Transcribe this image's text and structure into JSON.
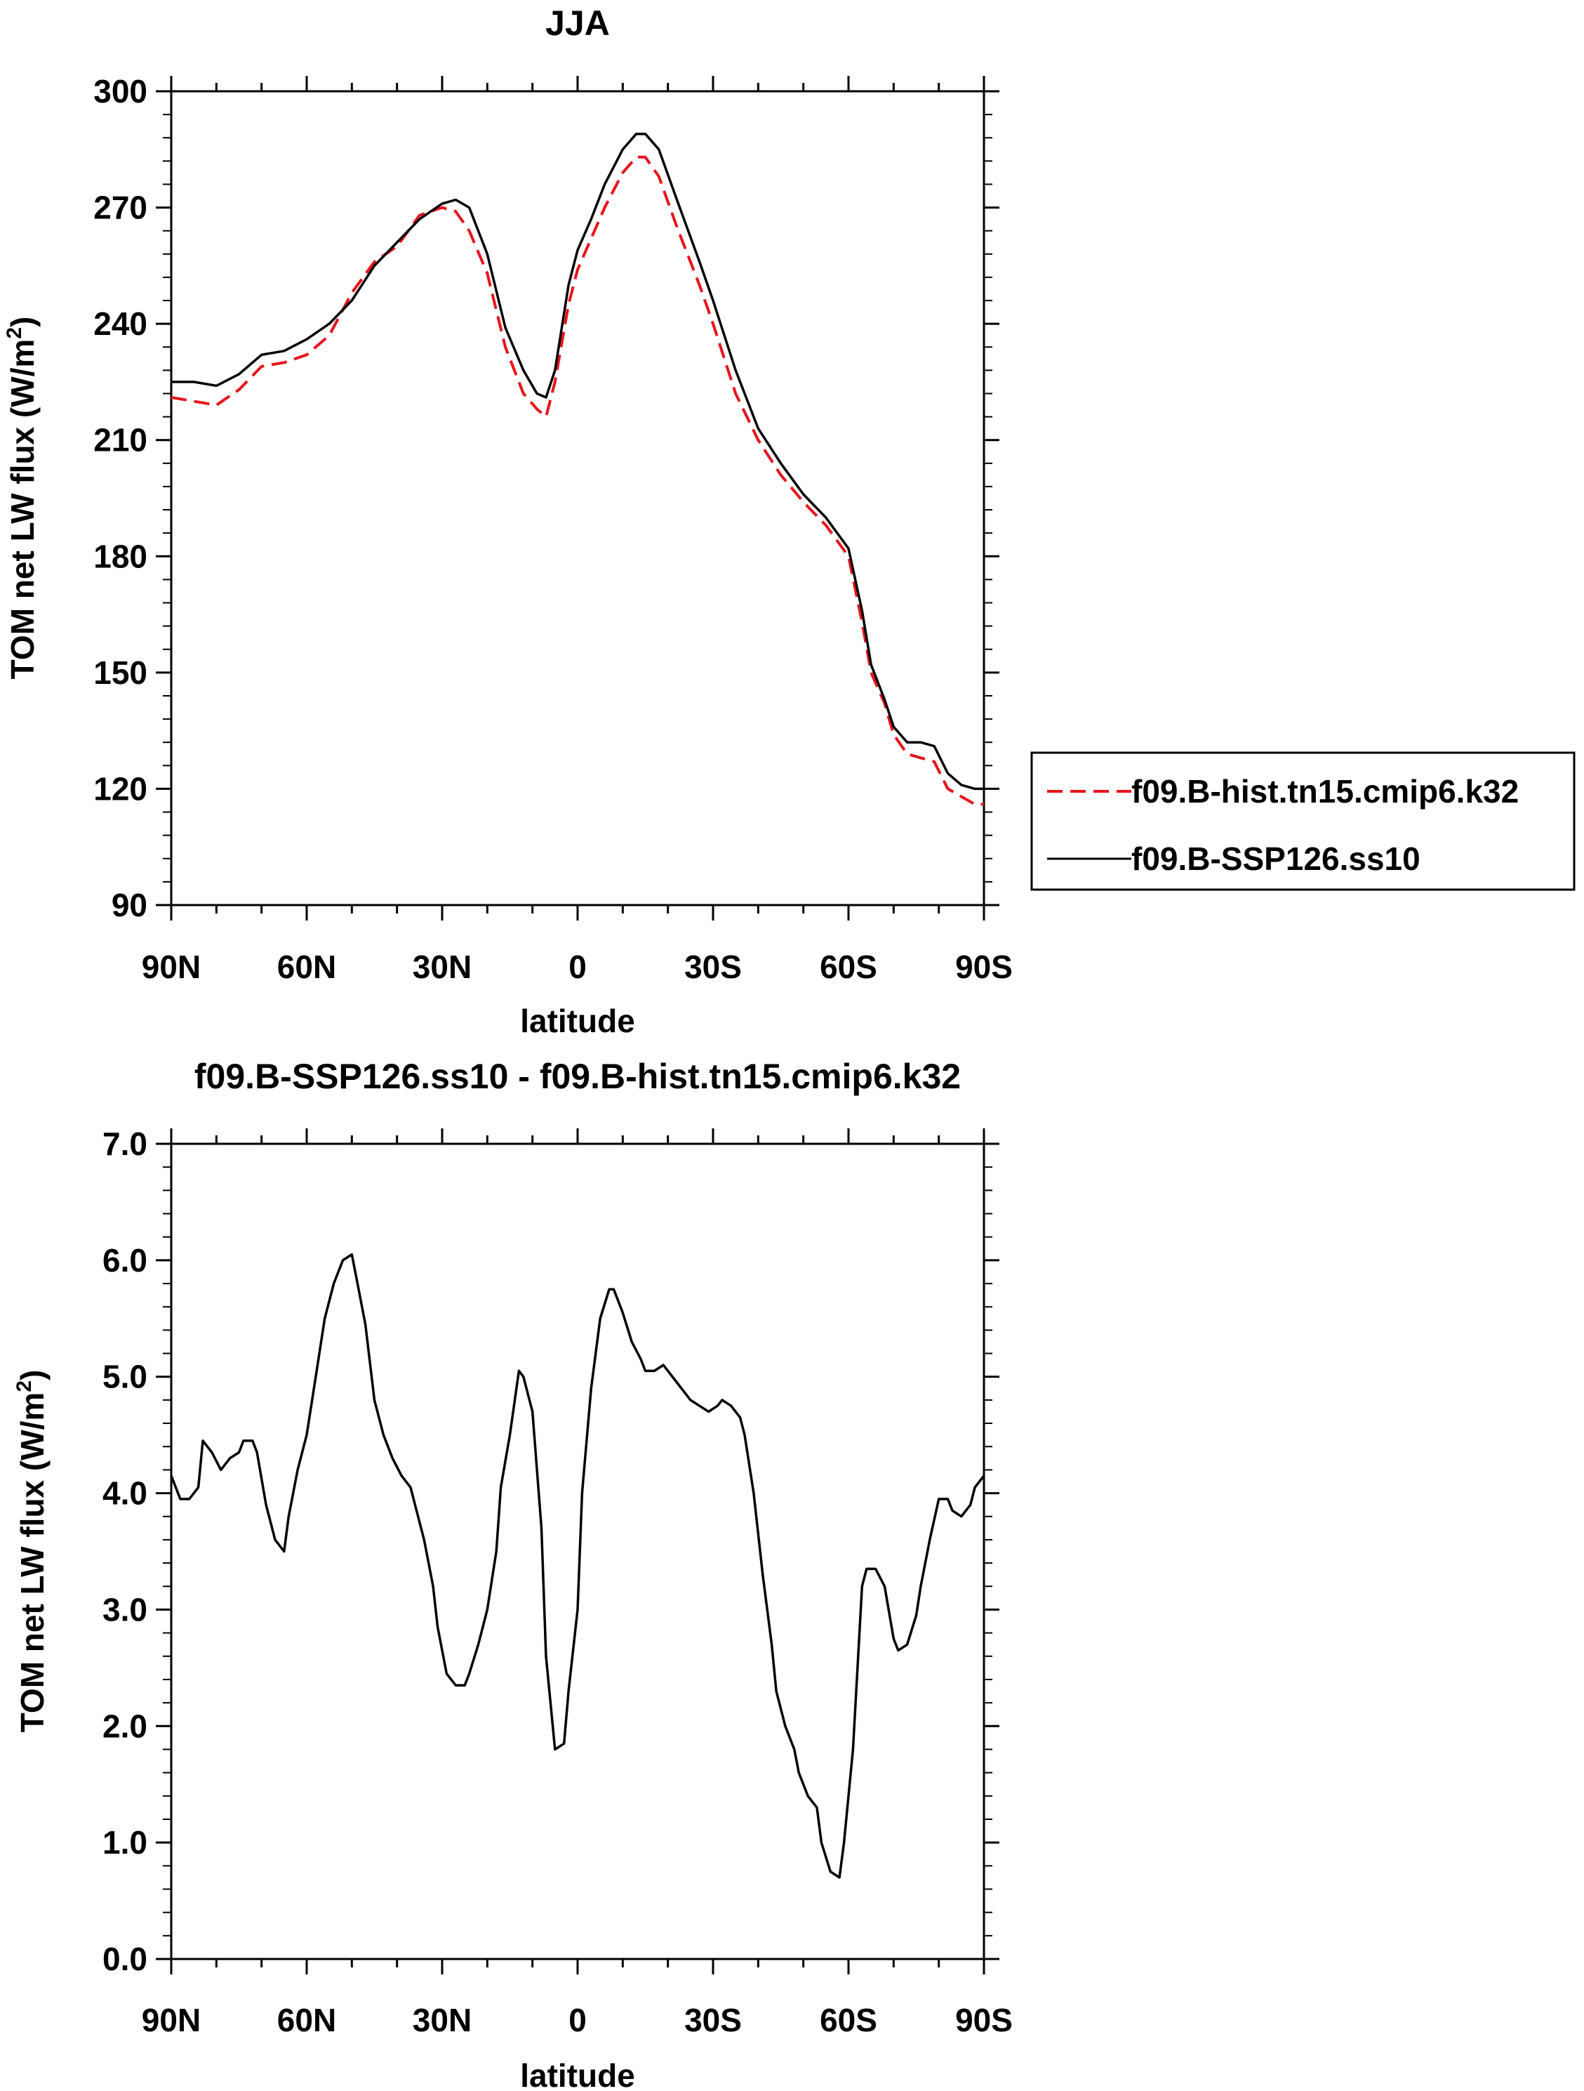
{
  "chart_data": [
    {
      "type": "line",
      "title": "JJA",
      "xlabel": "latitude",
      "ylabel": "TOM net LW flux (W/m",
      "ylabel_sup": "2",
      "ylabel_end": ")",
      "x_tick_labels": [
        "90N",
        "60N",
        "30N",
        "0",
        "30S",
        "60S",
        "90S"
      ],
      "x_tick_values": [
        90,
        60,
        30,
        0,
        -30,
        -60,
        -90
      ],
      "xlim": [
        90,
        -90
      ],
      "ylim": [
        90,
        300
      ],
      "y_ticks": [
        90,
        120,
        150,
        180,
        210,
        240,
        270,
        300
      ],
      "y_tick_labels": [
        "90",
        "120",
        "150",
        "180",
        "210",
        "240",
        "270",
        "300"
      ],
      "legend": {
        "placement": "right",
        "entries": [
          {
            "label": "f09.B-hist.tn15.cmip6.k32",
            "color": "#e8141c",
            "dash": "dashed"
          },
          {
            "label": "f09.B-SSP126.ss10",
            "color": "#000000",
            "dash": "solid"
          }
        ]
      },
      "series": [
        {
          "name": "f09.B-hist.tn15.cmip6.k32",
          "color": "#e8141c",
          "dash": "dashed",
          "x": [
            90,
            85,
            80,
            75,
            70,
            65,
            60,
            55,
            50,
            45,
            40,
            35,
            30,
            27,
            24,
            20,
            16,
            12,
            9,
            7,
            5,
            2,
            0,
            -3,
            -6,
            -10,
            -13,
            -15,
            -18,
            -22,
            -27,
            -30,
            -35,
            -40,
            -45,
            -50,
            -55,
            -60,
            -63,
            -65,
            -68,
            -70,
            -73,
            -76,
            -79,
            -82,
            -85,
            -88,
            -90
          ],
          "y": [
            221,
            220,
            219,
            223,
            229,
            230,
            232,
            237,
            248,
            256,
            260,
            268,
            270,
            269,
            264,
            253,
            234,
            222,
            218,
            216,
            225,
            245,
            254,
            262,
            270,
            279,
            283,
            283,
            278,
            265,
            250,
            240,
            222,
            210,
            201,
            194,
            188,
            180,
            163,
            150,
            142,
            134,
            129,
            128,
            127,
            120,
            118,
            116,
            116
          ]
        },
        {
          "name": "f09.B-SSP126.ss10",
          "color": "#000000",
          "dash": "solid",
          "x": [
            90,
            85,
            80,
            75,
            70,
            65,
            60,
            55,
            50,
            45,
            40,
            35,
            30,
            27,
            24,
            20,
            16,
            12,
            9,
            7,
            5,
            2,
            0,
            -3,
            -6,
            -10,
            -13,
            -15,
            -18,
            -22,
            -27,
            -30,
            -35,
            -40,
            -45,
            -50,
            -55,
            -60,
            -63,
            -65,
            -68,
            -70,
            -73,
            -76,
            -79,
            -82,
            -85,
            -88,
            -90
          ],
          "y": [
            225,
            225,
            224,
            227,
            232,
            233,
            236,
            240,
            246,
            255,
            261,
            267,
            271,
            272,
            270,
            258,
            239,
            228,
            222,
            221,
            228,
            250,
            259,
            267,
            276,
            285,
            289,
            289,
            285,
            272,
            256,
            246,
            228,
            213,
            204,
            196,
            190,
            182,
            166,
            152,
            143,
            136,
            132,
            132,
            131,
            124,
            121,
            120,
            120
          ]
        }
      ]
    },
    {
      "type": "line",
      "title": "f09.B-SSP126.ss10 - f09.B-hist.tn15.cmip6.k32",
      "xlabel": "latitude",
      "ylabel": "TOM net LW flux (W/m",
      "ylabel_sup": "2",
      "ylabel_end": ")",
      "x_tick_labels": [
        "90N",
        "60N",
        "30N",
        "0",
        "30S",
        "60S",
        "90S"
      ],
      "x_tick_values": [
        90,
        60,
        30,
        0,
        -30,
        -60,
        -90
      ],
      "xlim": [
        90,
        -90
      ],
      "ylim": [
        0.0,
        7.0
      ],
      "y_ticks": [
        0,
        1,
        2,
        3,
        4,
        5,
        6,
        7
      ],
      "y_tick_labels": [
        "0.0",
        "1.0",
        "2.0",
        "3.0",
        "4.0",
        "5.0",
        "6.0",
        "7.0"
      ],
      "series": [
        {
          "name": "f09.B-SSP126.ss10 - f09.B-hist.tn15.cmip6.k32",
          "color": "#000000",
          "dash": "solid",
          "x": [
            90,
            88,
            86,
            84,
            83,
            81,
            79,
            77,
            75,
            74,
            72,
            71,
            69,
            67,
            65,
            64,
            62,
            60,
            58,
            56,
            54,
            52,
            50,
            49,
            47,
            45,
            43,
            41,
            39,
            37,
            36,
            34,
            32,
            31,
            29,
            27,
            25,
            24,
            22,
            20,
            18,
            17,
            15,
            13,
            12,
            10,
            8,
            7,
            5,
            3,
            2,
            0,
            -1,
            -3,
            -5,
            -7,
            -8,
            -10,
            -12,
            -14,
            -15,
            -17,
            -19,
            -20,
            -22,
            -24,
            -25,
            -27,
            -29,
            -31,
            -32,
            -34,
            -36,
            -37,
            -39,
            -41,
            -43,
            -44,
            -46,
            -48,
            -49,
            -51,
            -53,
            -54,
            -56,
            -58,
            -59,
            -61,
            -63,
            -64,
            -66,
            -68,
            -70,
            -71,
            -73,
            -75,
            -76,
            -78,
            -80,
            -82,
            -83,
            -85,
            -87,
            -88,
            -90
          ],
          "y": [
            4.15,
            3.95,
            3.95,
            4.05,
            4.45,
            4.35,
            4.2,
            4.3,
            4.35,
            4.45,
            4.45,
            4.35,
            3.9,
            3.6,
            3.5,
            3.8,
            4.2,
            4.5,
            5.0,
            5.5,
            5.8,
            6.0,
            6.05,
            5.85,
            5.45,
            4.8,
            4.5,
            4.3,
            4.15,
            4.05,
            3.9,
            3.6,
            3.2,
            2.85,
            2.45,
            2.35,
            2.35,
            2.45,
            2.7,
            3.0,
            3.5,
            4.05,
            4.5,
            5.05,
            5.0,
            4.7,
            3.7,
            2.6,
            1.8,
            1.85,
            2.3,
            3.0,
            4.0,
            4.9,
            5.5,
            5.75,
            5.75,
            5.55,
            5.3,
            5.15,
            5.05,
            5.05,
            5.1,
            5.05,
            4.95,
            4.85,
            4.8,
            4.75,
            4.7,
            4.75,
            4.8,
            4.75,
            4.65,
            4.5,
            4.0,
            3.3,
            2.7,
            2.3,
            2.0,
            1.8,
            1.6,
            1.4,
            1.3,
            1.0,
            0.75,
            0.7,
            1.0,
            1.8,
            3.2,
            3.35,
            3.35,
            3.2,
            2.75,
            2.65,
            2.7,
            2.95,
            3.2,
            3.6,
            3.95,
            3.95,
            3.85,
            3.8,
            3.9,
            4.05,
            4.15
          ]
        }
      ]
    }
  ]
}
